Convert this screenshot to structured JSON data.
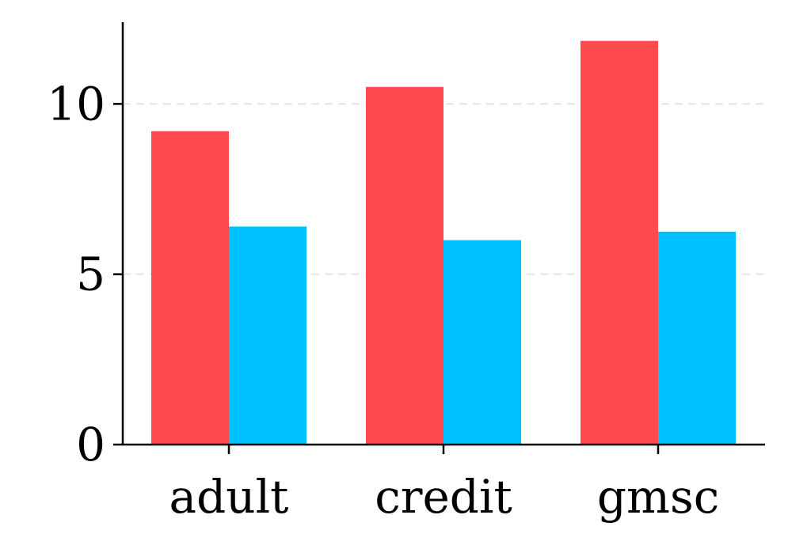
{
  "chart_data": {
    "type": "bar",
    "categories": [
      "adult",
      "credit",
      "gmsc"
    ],
    "series": [
      {
        "values": [
          9.2,
          10.5,
          11.85
        ],
        "color": "#ff4b4f"
      },
      {
        "values": [
          6.4,
          6.0,
          6.25
        ],
        "color": "#00c0ff"
      }
    ],
    "ylim": [
      0,
      12.4
    ],
    "yticks": [
      0,
      5,
      10
    ],
    "ytick_labels": [
      "0",
      "5",
      "10"
    ],
    "grid": {
      "y": true,
      "x": false,
      "style": "dashed"
    },
    "legend": "none",
    "title": "",
    "xlabel": "",
    "ylabel": ""
  }
}
